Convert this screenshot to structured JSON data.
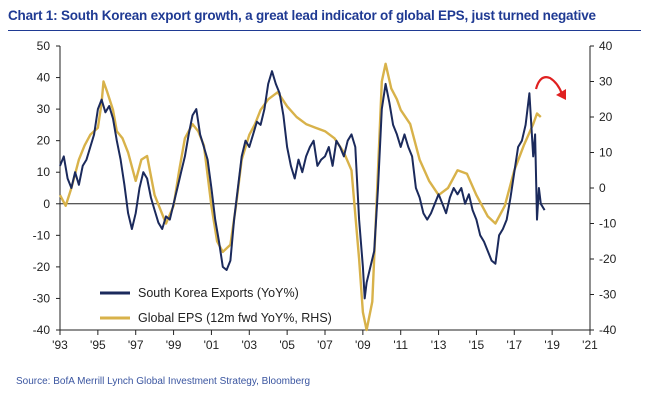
{
  "chart_data": {
    "type": "line",
    "title": "Chart 1: South Korean export growth, a great lead indicator of global EPS, just turned negative",
    "source": "Source:  BofA Merrill Lynch Global Investment Strategy, Bloomberg",
    "x_range": [
      1993,
      2021
    ],
    "y_left_range": [
      -40,
      50
    ],
    "y_right_range": [
      -40,
      40
    ],
    "x_ticks": [
      {
        "value": 1993,
        "label": "'93"
      },
      {
        "value": 1995,
        "label": "'95"
      },
      {
        "value": 1997,
        "label": "'97"
      },
      {
        "value": 1999,
        "label": "'99"
      },
      {
        "value": 2001,
        "label": "'01"
      },
      {
        "value": 2003,
        "label": "'03"
      },
      {
        "value": 2005,
        "label": "'05"
      },
      {
        "value": 2007,
        "label": "'07"
      },
      {
        "value": 2009,
        "label": "'09"
      },
      {
        "value": 2011,
        "label": "'11"
      },
      {
        "value": 2013,
        "label": "'13"
      },
      {
        "value": 2015,
        "label": "'15"
      },
      {
        "value": 2017,
        "label": "'17"
      },
      {
        "value": 2019,
        "label": "'19"
      },
      {
        "value": 2021,
        "label": "'21"
      }
    ],
    "y_left_ticks": [
      {
        "value": 50,
        "label": "50"
      },
      {
        "value": 40,
        "label": "40"
      },
      {
        "value": 30,
        "label": "30"
      },
      {
        "value": 20,
        "label": "20"
      },
      {
        "value": 10,
        "label": "10"
      },
      {
        "value": 0,
        "label": "0"
      },
      {
        "value": -10,
        "label": "-10"
      },
      {
        "value": -20,
        "label": "-20"
      },
      {
        "value": -30,
        "label": "-30"
      },
      {
        "value": -40,
        "label": "-40"
      }
    ],
    "y_right_ticks": [
      {
        "value": 40,
        "label": "40"
      },
      {
        "value": 30,
        "label": "30"
      },
      {
        "value": 20,
        "label": "20"
      },
      {
        "value": 10,
        "label": "10"
      },
      {
        "value": 0,
        "label": "0"
      },
      {
        "value": -10,
        "label": "-10"
      },
      {
        "value": -20,
        "label": "-20"
      },
      {
        "value": -30,
        "label": "-30"
      },
      {
        "value": -40,
        "label": "-40"
      }
    ],
    "series": [
      {
        "name": "South Korea Exports (YoY%)",
        "axis": "left",
        "color": "#1b2a5c",
        "points": [
          [
            1993.0,
            12
          ],
          [
            1993.2,
            15
          ],
          [
            1993.4,
            8
          ],
          [
            1993.6,
            5
          ],
          [
            1993.8,
            10
          ],
          [
            1994.0,
            6
          ],
          [
            1994.2,
            12
          ],
          [
            1994.4,
            14
          ],
          [
            1994.6,
            18
          ],
          [
            1994.8,
            22
          ],
          [
            1995.0,
            30
          ],
          [
            1995.2,
            33
          ],
          [
            1995.4,
            29
          ],
          [
            1995.6,
            31
          ],
          [
            1995.8,
            27
          ],
          [
            1996.0,
            20
          ],
          [
            1996.2,
            14
          ],
          [
            1996.4,
            6
          ],
          [
            1996.6,
            -3
          ],
          [
            1996.8,
            -8
          ],
          [
            1997.0,
            -3
          ],
          [
            1997.2,
            5
          ],
          [
            1997.4,
            10
          ],
          [
            1997.6,
            8
          ],
          [
            1997.8,
            2
          ],
          [
            1998.0,
            -2
          ],
          [
            1998.2,
            -6
          ],
          [
            1998.4,
            -8
          ],
          [
            1998.6,
            -4
          ],
          [
            1998.8,
            -5
          ],
          [
            1999.0,
            0
          ],
          [
            1999.2,
            5
          ],
          [
            1999.4,
            10
          ],
          [
            1999.6,
            15
          ],
          [
            1999.8,
            22
          ],
          [
            2000.0,
            28
          ],
          [
            2000.2,
            30
          ],
          [
            2000.4,
            22
          ],
          [
            2000.6,
            18
          ],
          [
            2000.8,
            14
          ],
          [
            2001.0,
            5
          ],
          [
            2001.2,
            -5
          ],
          [
            2001.4,
            -12
          ],
          [
            2001.6,
            -20
          ],
          [
            2001.8,
            -21
          ],
          [
            2002.0,
            -18
          ],
          [
            2002.2,
            -5
          ],
          [
            2002.4,
            5
          ],
          [
            2002.6,
            15
          ],
          [
            2002.8,
            20
          ],
          [
            2003.0,
            18
          ],
          [
            2003.2,
            22
          ],
          [
            2003.4,
            26
          ],
          [
            2003.6,
            25
          ],
          [
            2003.8,
            30
          ],
          [
            2004.0,
            38
          ],
          [
            2004.2,
            42
          ],
          [
            2004.4,
            38
          ],
          [
            2004.6,
            35
          ],
          [
            2004.8,
            28
          ],
          [
            2005.0,
            18
          ],
          [
            2005.2,
            12
          ],
          [
            2005.4,
            8
          ],
          [
            2005.6,
            14
          ],
          [
            2005.8,
            10
          ],
          [
            2006.0,
            15
          ],
          [
            2006.2,
            18
          ],
          [
            2006.4,
            20
          ],
          [
            2006.6,
            12
          ],
          [
            2006.8,
            14
          ],
          [
            2007.0,
            15
          ],
          [
            2007.2,
            18
          ],
          [
            2007.4,
            12
          ],
          [
            2007.6,
            20
          ],
          [
            2007.8,
            18
          ],
          [
            2008.0,
            15
          ],
          [
            2008.2,
            20
          ],
          [
            2008.4,
            22
          ],
          [
            2008.6,
            18
          ],
          [
            2008.8,
            -5
          ],
          [
            2009.0,
            -20
          ],
          [
            2009.1,
            -30
          ],
          [
            2009.2,
            -25
          ],
          [
            2009.4,
            -20
          ],
          [
            2009.6,
            -15
          ],
          [
            2009.8,
            5
          ],
          [
            2010.0,
            30
          ],
          [
            2010.2,
            38
          ],
          [
            2010.4,
            32
          ],
          [
            2010.6,
            25
          ],
          [
            2010.8,
            22
          ],
          [
            2011.0,
            18
          ],
          [
            2011.2,
            22
          ],
          [
            2011.4,
            18
          ],
          [
            2011.6,
            15
          ],
          [
            2011.8,
            5
          ],
          [
            2012.0,
            2
          ],
          [
            2012.2,
            -3
          ],
          [
            2012.4,
            -5
          ],
          [
            2012.6,
            -3
          ],
          [
            2012.8,
            0
          ],
          [
            2013.0,
            3
          ],
          [
            2013.2,
            0
          ],
          [
            2013.4,
            -3
          ],
          [
            2013.6,
            2
          ],
          [
            2013.8,
            5
          ],
          [
            2014.0,
            3
          ],
          [
            2014.2,
            5
          ],
          [
            2014.4,
            0
          ],
          [
            2014.6,
            3
          ],
          [
            2014.8,
            -2
          ],
          [
            2015.0,
            -5
          ],
          [
            2015.2,
            -10
          ],
          [
            2015.4,
            -12
          ],
          [
            2015.6,
            -15
          ],
          [
            2015.8,
            -18
          ],
          [
            2016.0,
            -19
          ],
          [
            2016.2,
            -10
          ],
          [
            2016.4,
            -8
          ],
          [
            2016.6,
            -5
          ],
          [
            2016.8,
            2
          ],
          [
            2017.0,
            10
          ],
          [
            2017.2,
            18
          ],
          [
            2017.4,
            20
          ],
          [
            2017.6,
            25
          ],
          [
            2017.8,
            35
          ],
          [
            2018.0,
            15
          ],
          [
            2018.1,
            22
          ],
          [
            2018.2,
            -5
          ],
          [
            2018.3,
            5
          ],
          [
            2018.4,
            0
          ],
          [
            2018.6,
            -2
          ]
        ]
      },
      {
        "name": "Global EPS (12m fwd YoY%, RHS)",
        "axis": "right",
        "color": "#d8b24a",
        "points": [
          [
            1993.0,
            -2
          ],
          [
            1993.3,
            -5
          ],
          [
            1993.6,
            0
          ],
          [
            1994.0,
            8
          ],
          [
            1994.3,
            12
          ],
          [
            1994.6,
            15
          ],
          [
            1995.0,
            17
          ],
          [
            1995.2,
            24
          ],
          [
            1995.3,
            30
          ],
          [
            1995.5,
            27
          ],
          [
            1995.8,
            22
          ],
          [
            1996.0,
            16
          ],
          [
            1996.3,
            14
          ],
          [
            1996.6,
            10
          ],
          [
            1997.0,
            2
          ],
          [
            1997.3,
            8
          ],
          [
            1997.6,
            9
          ],
          [
            1998.0,
            -2
          ],
          [
            1998.3,
            -6
          ],
          [
            1998.6,
            -10
          ],
          [
            1999.0,
            -5
          ],
          [
            1999.3,
            5
          ],
          [
            1999.6,
            14
          ],
          [
            2000.0,
            18
          ],
          [
            2000.3,
            16
          ],
          [
            2000.6,
            12
          ],
          [
            2001.0,
            -5
          ],
          [
            2001.3,
            -15
          ],
          [
            2001.6,
            -18
          ],
          [
            2002.0,
            -16
          ],
          [
            2002.3,
            -5
          ],
          [
            2002.6,
            8
          ],
          [
            2003.0,
            15
          ],
          [
            2003.3,
            18
          ],
          [
            2003.6,
            22
          ],
          [
            2004.0,
            25
          ],
          [
            2004.5,
            27
          ],
          [
            2005.0,
            23
          ],
          [
            2005.5,
            20
          ],
          [
            2006.0,
            18
          ],
          [
            2006.5,
            17
          ],
          [
            2007.0,
            16
          ],
          [
            2007.5,
            14
          ],
          [
            2008.0,
            10
          ],
          [
            2008.4,
            5
          ],
          [
            2008.8,
            -20
          ],
          [
            2009.0,
            -35
          ],
          [
            2009.2,
            -40
          ],
          [
            2009.5,
            -32
          ],
          [
            2009.8,
            5
          ],
          [
            2010.0,
            30
          ],
          [
            2010.2,
            35
          ],
          [
            2010.5,
            28
          ],
          [
            2010.8,
            25
          ],
          [
            2011.0,
            22
          ],
          [
            2011.5,
            18
          ],
          [
            2012.0,
            8
          ],
          [
            2012.5,
            2
          ],
          [
            2013.0,
            -2
          ],
          [
            2013.5,
            0
          ],
          [
            2014.0,
            5
          ],
          [
            2014.5,
            4
          ],
          [
            2015.0,
            -2
          ],
          [
            2015.3,
            -5
          ],
          [
            2015.6,
            -8
          ],
          [
            2016.0,
            -10
          ],
          [
            2016.5,
            -5
          ],
          [
            2017.0,
            5
          ],
          [
            2017.5,
            12
          ],
          [
            2018.0,
            18
          ],
          [
            2018.2,
            21
          ],
          [
            2018.4,
            20
          ]
        ]
      }
    ],
    "legend_position": "bottom-left",
    "annotation": "red curved arrow pointing down after 2018"
  }
}
